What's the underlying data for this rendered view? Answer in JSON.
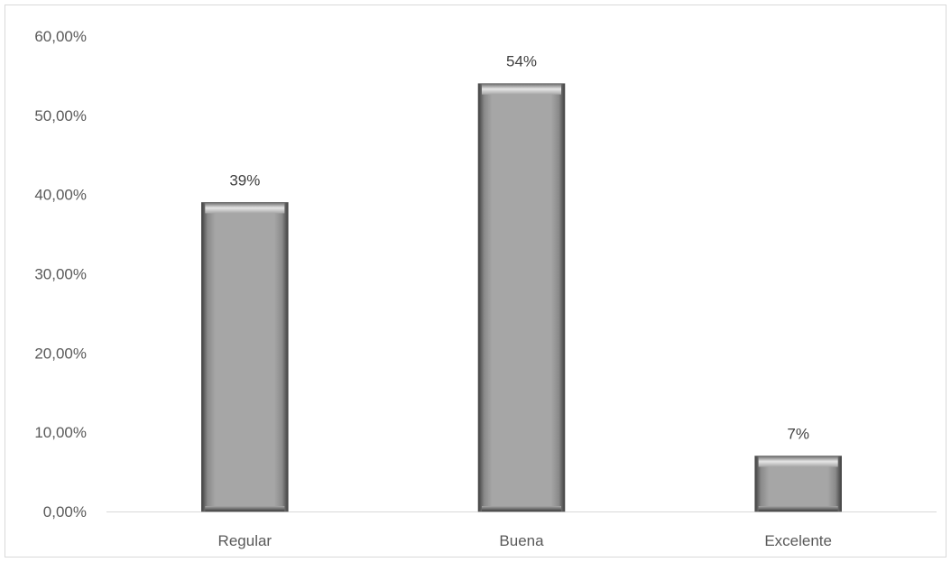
{
  "chart_data": {
    "type": "bar",
    "categories": [
      "Regular",
      "Buena",
      "Excelente"
    ],
    "values": [
      0.39,
      0.54,
      0.07
    ],
    "data_labels": [
      "39%",
      "54%",
      "7%"
    ],
    "title": "",
    "xlabel": "",
    "ylabel": "",
    "ylim": [
      0,
      0.6
    ],
    "yticks": [
      0,
      0.1,
      0.2,
      0.3,
      0.4,
      0.5,
      0.6
    ],
    "ytick_labels": [
      "0,00%",
      "10,00%",
      "20,00%",
      "30,00%",
      "40,00%",
      "50,00%",
      "60,00%"
    ],
    "grid": false,
    "legend": "none",
    "bar_color": "#a6a6a6"
  }
}
